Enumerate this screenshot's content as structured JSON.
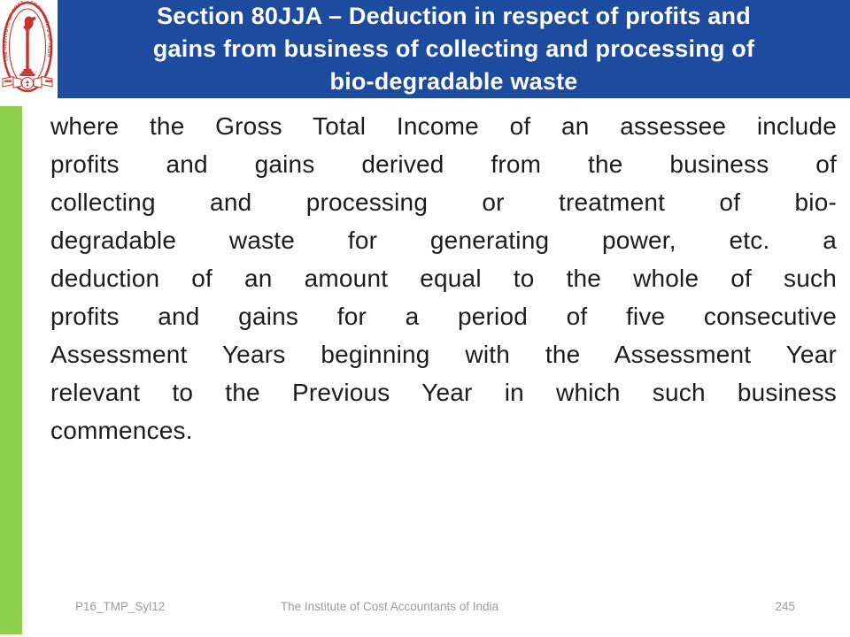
{
  "theme": {
    "header_blue": "#1d4b9e",
    "stripe_green": "#8fd04e",
    "logo_red": "#c5352e",
    "body_text": "#1c1c1c",
    "footer_text": "#9b9b9b"
  },
  "logo": {
    "ring_text": "THE INSTITUTE OF COST ACCOUNTANTS OF INDIA"
  },
  "header": {
    "title_lines": [
      "Section 80JJA – Deduction in respect of profits and",
      "gains from business of collecting and processing of",
      "bio-degradable waste"
    ]
  },
  "body": {
    "lines": [
      "where the Gross Total Income of an assessee include",
      "profits and gains derived from the business of",
      "collecting and processing or treatment of bio-",
      "degradable waste for generating power, etc. a",
      "deduction of an amount equal to the whole of such",
      "profits and gains for a period of five consecutive",
      "Assessment Years beginning with the Assessment Year",
      "relevant to the Previous Year in which such business",
      "commences."
    ]
  },
  "footer": {
    "left": "P16_TMP_Syl12",
    "center": "The Institute of Cost Accountants of India",
    "right_page": "245"
  }
}
